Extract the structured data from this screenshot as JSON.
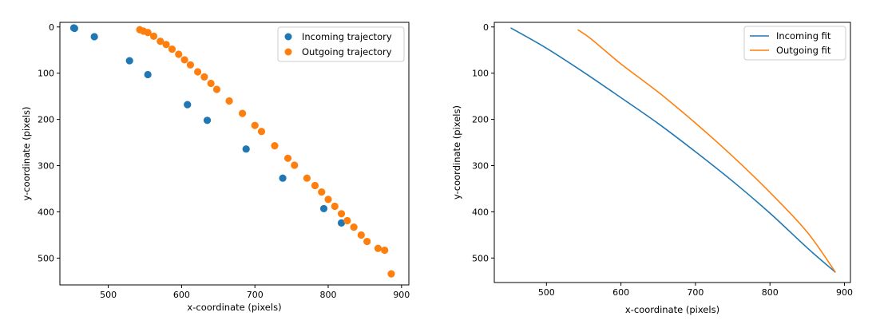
{
  "colors": {
    "incoming": "#1f77b4",
    "outgoing": "#ff7f0e"
  },
  "chart_data": [
    {
      "type": "scatter",
      "xlabel": "x-coordinate (pixels)",
      "ylabel": "y-coordinate (pixels)",
      "xlim": [
        434,
        910
      ],
      "ylim": [
        558,
        -10
      ],
      "y_inverted": true,
      "xticks": [
        500,
        600,
        700,
        800,
        900
      ],
      "yticks": [
        0,
        100,
        200,
        300,
        400,
        500
      ],
      "grid": false,
      "legend": "top-right",
      "series": [
        {
          "name": "Incoming trajectory",
          "color": "#1f77b4",
          "x": [
            453,
            454,
            481,
            529,
            554,
            608,
            635,
            688,
            738,
            794,
            818
          ],
          "y": [
            2,
            3,
            21,
            73,
            103,
            168,
            202,
            264,
            327,
            393,
            424
          ]
        },
        {
          "name": "Outgoing trajectory",
          "color": "#ff7f0e",
          "x": [
            543,
            548,
            554,
            562,
            571,
            579,
            587,
            596,
            604,
            612,
            622,
            631,
            640,
            648,
            665,
            683,
            700,
            709,
            727,
            745,
            754,
            771,
            782,
            791,
            800,
            809,
            818,
            826,
            835,
            845,
            853,
            868,
            877,
            886
          ],
          "y": [
            6,
            9,
            12,
            20,
            31,
            38,
            48,
            59,
            71,
            82,
            97,
            108,
            122,
            135,
            160,
            187,
            213,
            226,
            257,
            284,
            299,
            327,
            343,
            357,
            373,
            388,
            404,
            419,
            433,
            450,
            464,
            479,
            483,
            534
          ]
        }
      ]
    },
    {
      "type": "line",
      "xlabel": "x-coordinate (pixels)",
      "ylabel": "y-coordinate (pixels)",
      "xlim": [
        430,
        908
      ],
      "ylim": [
        553,
        -10
      ],
      "y_inverted": true,
      "xticks": [
        500,
        600,
        700,
        800,
        900
      ],
      "yticks": [
        0,
        100,
        200,
        300,
        400,
        500
      ],
      "grid": false,
      "legend": "top-right",
      "series": [
        {
          "name": "Incoming fit",
          "color": "#1f77b4",
          "x": [
            452,
            500,
            550,
            600,
            650,
            700,
            750,
            800,
            850,
            888
          ],
          "y": [
            2,
            46,
            98,
            153,
            209,
            270,
            334,
            403,
            478,
            531
          ]
        },
        {
          "name": "Outgoing fit",
          "color": "#ff7f0e",
          "x": [
            542,
            560,
            600,
            650,
            700,
            750,
            800,
            850,
            888
          ],
          "y": [
            6,
            26,
            80,
            141,
            208,
            280,
            358,
            444,
            531
          ]
        }
      ]
    }
  ]
}
